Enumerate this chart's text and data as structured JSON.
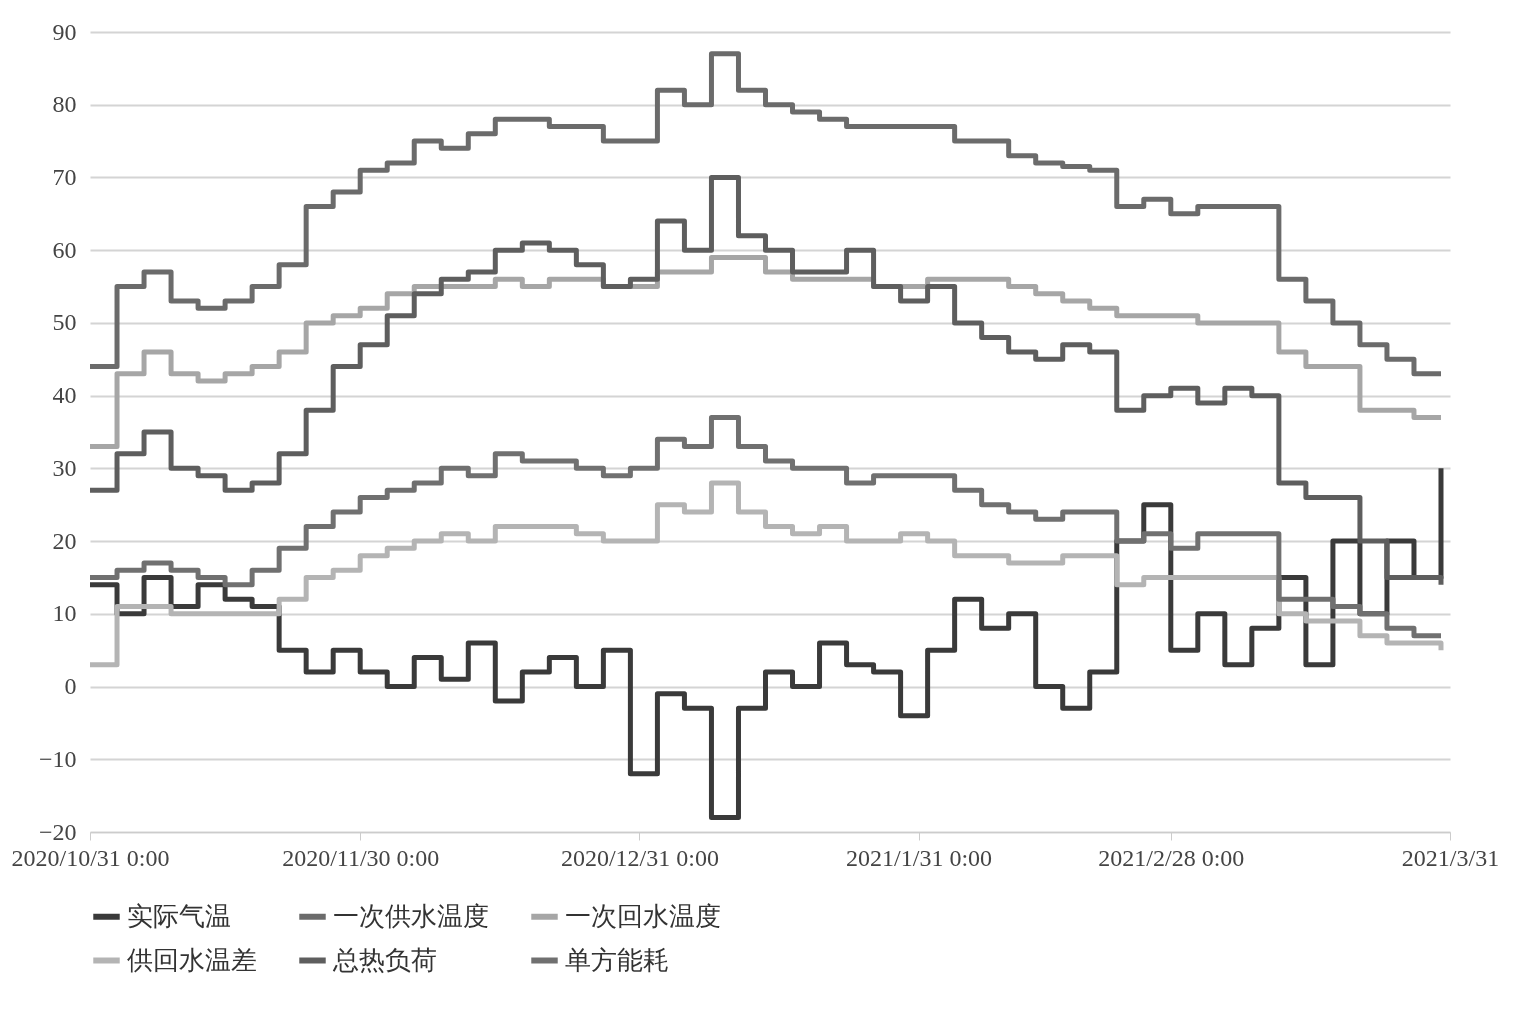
{
  "chart_data": {
    "type": "step",
    "x": [
      "2020-10-31",
      "2020-11-03",
      "2020-11-06",
      "2020-11-09",
      "2020-11-12",
      "2020-11-15",
      "2020-11-18",
      "2020-11-21",
      "2020-11-24",
      "2020-11-27",
      "2020-11-30",
      "2020-12-03",
      "2020-12-06",
      "2020-12-09",
      "2020-12-12",
      "2020-12-15",
      "2020-12-18",
      "2020-12-21",
      "2020-12-24",
      "2020-12-27",
      "2020-12-30",
      "2021-01-02",
      "2021-01-05",
      "2021-01-08",
      "2021-01-11",
      "2021-01-14",
      "2021-01-17",
      "2021-01-20",
      "2021-01-23",
      "2021-01-26",
      "2021-01-29",
      "2021-02-01",
      "2021-02-04",
      "2021-02-07",
      "2021-02-10",
      "2021-02-13",
      "2021-02-16",
      "2021-02-19",
      "2021-02-22",
      "2021-02-25",
      "2021-02-28",
      "2021-03-03",
      "2021-03-06",
      "2021-03-09",
      "2021-03-12",
      "2021-03-15",
      "2021-03-18",
      "2021-03-21",
      "2021-03-24",
      "2021-03-27",
      "2021-03-30"
    ],
    "series": [
      {
        "name": "实际气温",
        "color": "#3a3a3a",
        "values": [
          14,
          10,
          15,
          11,
          14,
          12,
          11,
          5,
          2,
          5,
          2,
          0,
          4,
          1,
          6,
          -2,
          2,
          4,
          0,
          5,
          -12,
          -1,
          -3,
          -18,
          -3,
          2,
          0,
          6,
          3,
          2,
          -4,
          5,
          12,
          8,
          10,
          0,
          -3,
          2,
          20,
          25,
          5,
          10,
          3,
          8,
          15,
          3,
          20,
          10,
          20,
          15,
          30
        ]
      },
      {
        "name": "一次供水温度",
        "color": "#6b6b6b",
        "values": [
          44,
          55,
          57,
          53,
          52,
          53,
          55,
          58,
          66,
          68,
          71,
          72,
          75,
          74,
          76,
          78,
          78,
          77,
          77,
          75,
          75,
          82,
          80,
          87,
          82,
          80,
          79,
          78,
          77,
          77,
          77,
          77,
          75,
          75,
          73,
          72,
          71.5,
          71,
          66,
          67,
          65,
          66,
          66,
          66,
          56,
          53,
          50,
          47,
          45,
          43,
          43
        ]
      },
      {
        "name": "一次回水温度",
        "color": "#a6a6a6",
        "values": [
          33,
          43,
          46,
          43,
          42,
          43,
          44,
          46,
          50,
          51,
          52,
          54,
          55,
          55,
          55,
          56,
          55,
          56,
          56,
          55,
          55,
          57,
          57,
          59,
          59,
          57,
          56,
          56,
          56,
          55,
          55,
          56,
          56,
          56,
          55,
          54,
          53,
          52,
          51,
          51,
          51,
          50,
          50,
          50,
          46,
          44,
          44,
          38,
          38,
          37,
          37
        ]
      },
      {
        "name": "供回水温差",
        "color": "#b4b4b4",
        "values": [
          3,
          11,
          11,
          10,
          10,
          10,
          10,
          12,
          15,
          16,
          18,
          19,
          20,
          21,
          20,
          22,
          22,
          22,
          21,
          20,
          20,
          25,
          24,
          28,
          24,
          22,
          21,
          22,
          20,
          20,
          21,
          20,
          18,
          18,
          17,
          17,
          18,
          18,
          14,
          15,
          15,
          15,
          15,
          15,
          10,
          9,
          9,
          7,
          6,
          6,
          5
        ]
      },
      {
        "name": "总热负荷",
        "color": "#5e5e5e",
        "values": [
          27,
          32,
          35,
          30,
          29,
          27,
          28,
          32,
          38,
          44,
          47,
          51,
          54,
          56,
          57,
          60,
          61,
          60,
          58,
          55,
          56,
          64,
          60,
          70,
          62,
          60,
          57,
          57,
          60,
          55,
          53,
          55,
          50,
          48,
          46,
          45,
          47,
          46,
          38,
          40,
          41,
          39,
          41,
          40,
          28,
          26,
          26,
          20,
          15,
          15,
          14
        ]
      },
      {
        "name": "单方能耗",
        "color": "#707070",
        "values": [
          15,
          16,
          17,
          16,
          15,
          14,
          16,
          19,
          22,
          24,
          26,
          27,
          28,
          30,
          29,
          32,
          31,
          31,
          30,
          29,
          30,
          34,
          33,
          37,
          33,
          31,
          30,
          30,
          28,
          29,
          29,
          29,
          27,
          25,
          24,
          23,
          24,
          24,
          20,
          21,
          19,
          21,
          21,
          21,
          12,
          12,
          11,
          10,
          8,
          7,
          7
        ]
      }
    ],
    "xlim": [
      "2020-10-31",
      "2021-03-31"
    ],
    "xticks": [
      {
        "value": "2020-10-31",
        "label": "2020/10/31 0:00"
      },
      {
        "value": "2020-11-30",
        "label": "2020/11/30 0:00"
      },
      {
        "value": "2020-12-31",
        "label": "2020/12/31 0:00"
      },
      {
        "value": "2021-01-31",
        "label": "2021/1/31 0:00"
      },
      {
        "value": "2021-02-28",
        "label": "2021/2/28 0:00"
      },
      {
        "value": "2021-03-31",
        "label": "2021/3/31"
      }
    ],
    "ylim": [
      -20,
      90
    ],
    "yticks": [
      -20,
      -10,
      0,
      10,
      20,
      30,
      40,
      50,
      60,
      70,
      80,
      90
    ],
    "grid": "y",
    "legend": "bottom",
    "marker": "none",
    "line_style": "solid"
  }
}
